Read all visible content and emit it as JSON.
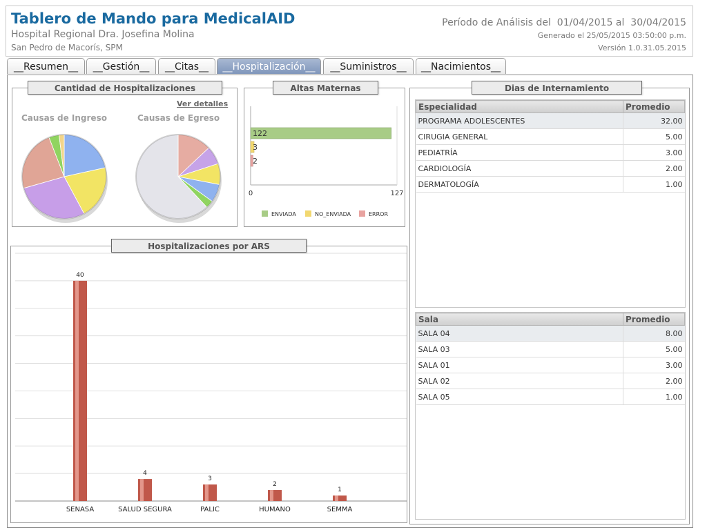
{
  "header": {
    "title": "Tablero de Mando para MedicalAID",
    "hospital": "Hospital Regional Dra. Josefina Molina",
    "location": "San Pedro de Macorís, SPM",
    "period": "Período de Análisis del  01/04/2015 al  30/04/2015",
    "generated": "Generado el 25/05/2015 03:50:00 p.m.",
    "version": "Versión 1.0.31.05.2015"
  },
  "tabs": [
    {
      "label": "__Resumen__"
    },
    {
      "label": "__Gestión__"
    },
    {
      "label": "__Citas__"
    },
    {
      "label": "__Hospitalización__",
      "active": true
    },
    {
      "label": "__Suministros__"
    },
    {
      "label": "__Nacimientos__"
    }
  ],
  "cantidad": {
    "title": "Cantidad de Hospitalizaciones",
    "link": "Ver detalles",
    "ingreso_label": "Causas de Ingreso",
    "egreso_label": "Causas de Egreso"
  },
  "altas": {
    "title": "Altas Maternas"
  },
  "ars": {
    "title": "Hospitalizaciones por ARS"
  },
  "dias": {
    "title": "Dias de Internamiento",
    "especialidad": {
      "headers": [
        "Especialidad",
        "Promedio"
      ],
      "rows": [
        [
          "PROGRAMA ADOLESCENTES",
          "32.00"
        ],
        [
          "CIRUGIA GENERAL",
          "5.00"
        ],
        [
          "PEDIATRÍA",
          "3.00"
        ],
        [
          "CARDIOLOGÍA",
          "2.00"
        ],
        [
          "DERMATOLOGÍA",
          "1.00"
        ]
      ]
    },
    "sala": {
      "headers": [
        "Sala",
        "Promedio"
      ],
      "rows": [
        [
          "SALA 04",
          "8.00"
        ],
        [
          "SALA 03",
          "5.00"
        ],
        [
          "SALA 01",
          "3.00"
        ],
        [
          "SALA 02",
          "2.00"
        ],
        [
          "SALA 05",
          "1.00"
        ]
      ]
    }
  },
  "chart_data": [
    {
      "type": "pie",
      "title": "Causas de Ingreso",
      "values": [
        22,
        21,
        29,
        24,
        4,
        2
      ],
      "colors": [
        "#8fb2ef",
        "#f2e464",
        "#c79ee8",
        "#e0a596",
        "#90d460",
        "#f2d58a"
      ]
    },
    {
      "type": "pie",
      "title": "Causas de Egreso",
      "values": [
        13,
        7,
        8,
        7,
        3,
        62
      ],
      "colors": [
        "#e6aca2",
        "#c6a3e8",
        "#f2e464",
        "#8fb2ef",
        "#90d460",
        "#e4e4ea"
      ]
    },
    {
      "type": "bar",
      "orientation": "horizontal",
      "title": "Altas Maternas",
      "categories": [
        "ENVIADA",
        "NO_ENVIADA",
        "ERROR"
      ],
      "values": [
        122,
        3,
        2
      ],
      "colors": [
        "#a8cc86",
        "#f2d870",
        "#e8a3a0"
      ],
      "xlim": [
        0,
        127
      ],
      "legend": "bottom"
    },
    {
      "type": "bar",
      "title": "Hospitalizaciones por ARS",
      "categories": [
        "SENASA",
        "SALUD SEGURA",
        "PALIC",
        "HUMANO",
        "SEMMA"
      ],
      "values": [
        40,
        4,
        3,
        2,
        1
      ],
      "ylim": [
        0,
        45
      ],
      "grid": true
    }
  ]
}
